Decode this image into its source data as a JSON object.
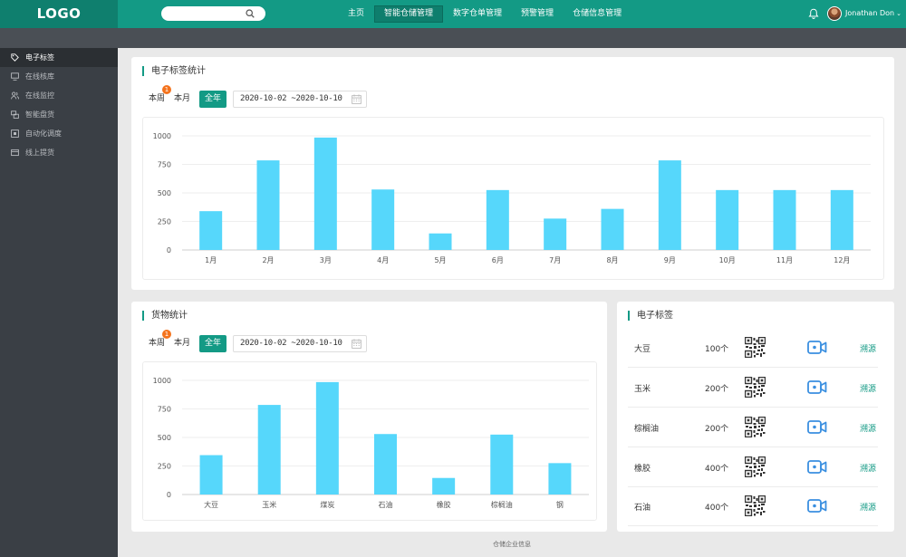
{
  "logo": "LOGO",
  "nav": [
    {
      "label": "主页",
      "active": false
    },
    {
      "label": "智能仓储管理",
      "active": true
    },
    {
      "label": "数字仓单管理",
      "active": false
    },
    {
      "label": "预警管理",
      "active": false
    },
    {
      "label": "仓储信息管理",
      "active": false
    }
  ],
  "user": {
    "name": "Jonathan Don",
    "caret": "⌄"
  },
  "sidebar": [
    {
      "label": "电子标签",
      "icon": "tag-icon",
      "active": true
    },
    {
      "label": "在线核库",
      "icon": "monitor-icon",
      "active": false
    },
    {
      "label": "在线监控",
      "icon": "people-icon",
      "active": false
    },
    {
      "label": "智能盘货",
      "icon": "boxes-icon",
      "active": false
    },
    {
      "label": "自动化调度",
      "icon": "dispatch-icon",
      "active": false
    },
    {
      "label": "线上提货",
      "icon": "card-icon",
      "active": false
    }
  ],
  "top_panel": {
    "title": "电子标签统计",
    "filters": [
      "本周",
      "本月",
      "全年"
    ],
    "active_filter": "全年",
    "badge": "1",
    "date_range": "2020-10-02 ~2020-10-10"
  },
  "goods_panel": {
    "title": "货物统计",
    "filters": [
      "本周",
      "本月",
      "全年"
    ],
    "active_filter": "全年",
    "badge": "1",
    "date_range": "2020-10-02 ~2020-10-10"
  },
  "tag_panel": {
    "title": "电子标签",
    "rows": [
      {
        "name": "大豆",
        "count": "100个",
        "trace": "溯源"
      },
      {
        "name": "玉米",
        "count": "200个",
        "trace": "溯源"
      },
      {
        "name": "棕榈油",
        "count": "200个",
        "trace": "溯源"
      },
      {
        "name": "橡胶",
        "count": "400个",
        "trace": "溯源"
      },
      {
        "name": "石油",
        "count": "400个",
        "trace": "溯源"
      }
    ]
  },
  "footer": "仓储企业信息",
  "colors": {
    "primary": "#139a85",
    "bar": "#56d7fb",
    "badge": "#f4731d",
    "sidebar": "#3a3f45"
  },
  "chart_data": [
    {
      "type": "bar",
      "categories": [
        "1月",
        "2月",
        "3月",
        "4月",
        "5月",
        "6月",
        "7月",
        "8月",
        "9月",
        "10月",
        "11月",
        "12月"
      ],
      "values": [
        340,
        785,
        985,
        530,
        145,
        525,
        275,
        360,
        785,
        525,
        525,
        525
      ],
      "yticks": [
        0,
        250,
        500,
        750,
        1000
      ],
      "ylim": [
        0,
        1000
      ],
      "grid": true,
      "title": "",
      "xlabel": "",
      "ylabel": ""
    },
    {
      "type": "bar",
      "categories": [
        "大豆",
        "玉米",
        "煤炭",
        "石油",
        "橡胶",
        "棕榈油",
        "钢"
      ],
      "values": [
        345,
        785,
        985,
        530,
        145,
        525,
        275
      ],
      "yticks": [
        0,
        250,
        500,
        750,
        1000
      ],
      "ylim": [
        0,
        1000
      ],
      "grid": true,
      "title": "",
      "xlabel": "",
      "ylabel": ""
    }
  ]
}
